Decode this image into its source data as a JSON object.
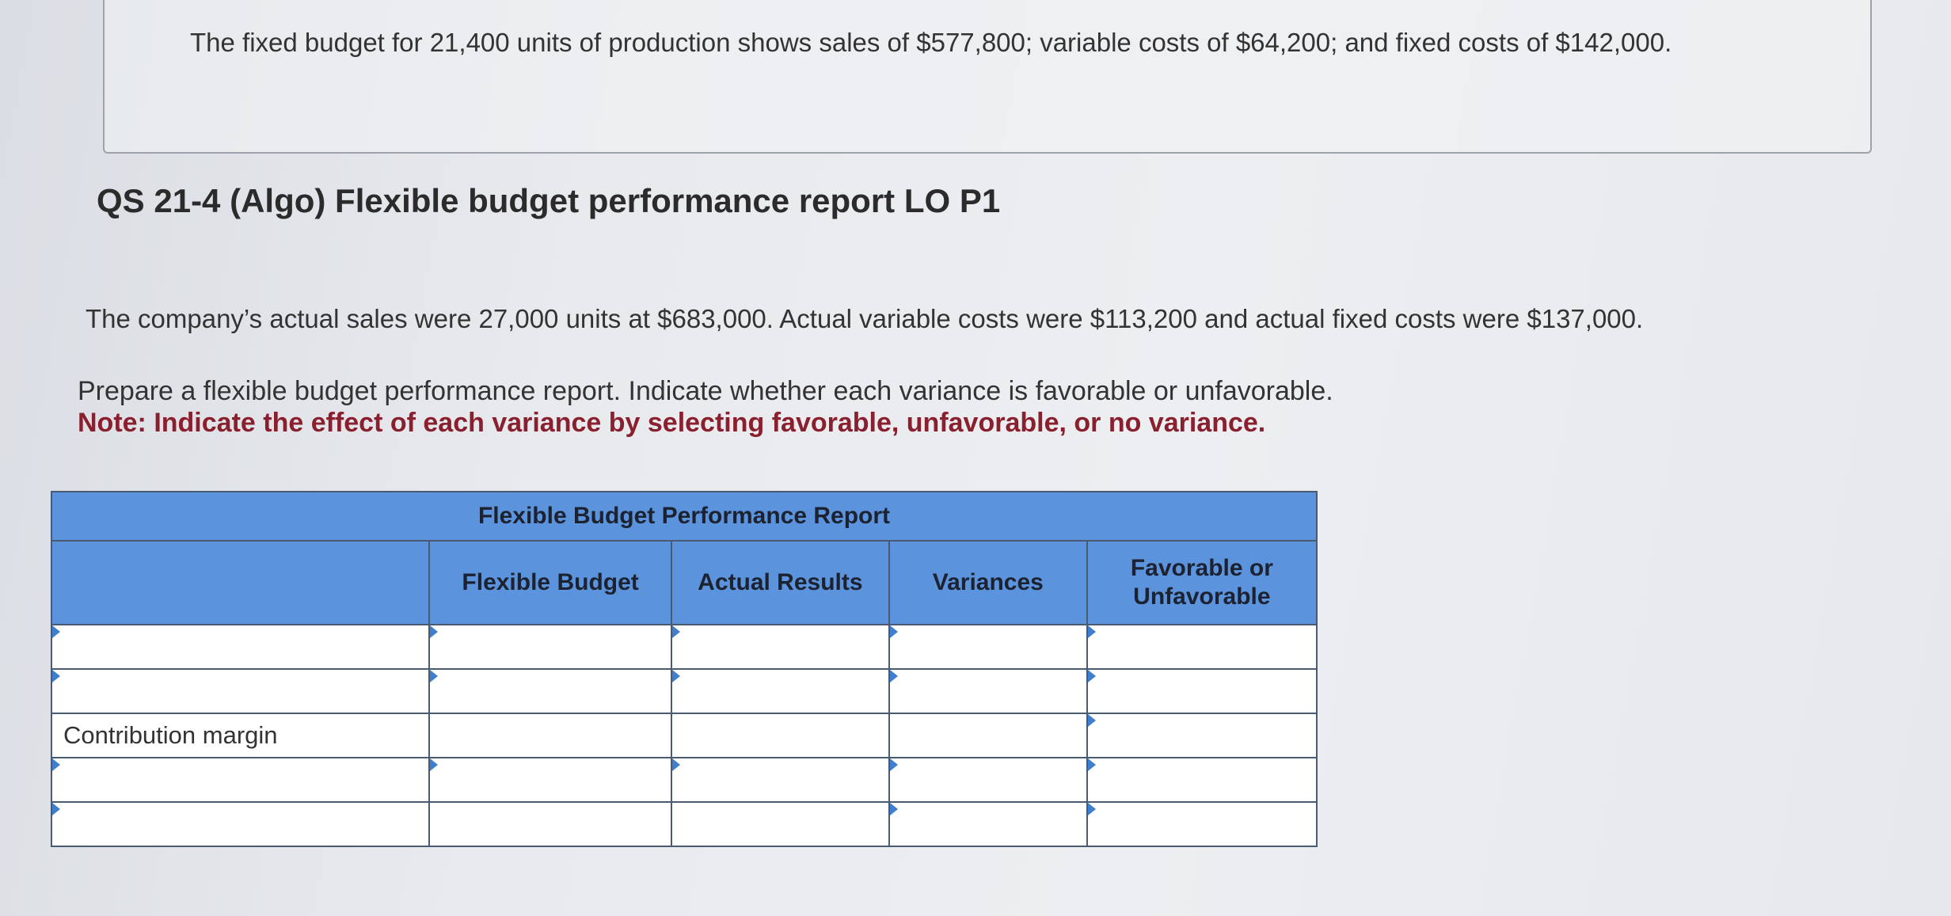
{
  "given": {
    "text": "The fixed budget for 21,400 units of production shows sales of $577,800; variable costs of $64,200; and fixed costs of $142,000."
  },
  "question": {
    "title": "QS 21-4 (Algo) Flexible budget performance report LO P1",
    "scenario": "The company’s actual sales were 27,000 units at $683,000. Actual variable costs were $113,200 and actual fixed costs were $137,000.",
    "instruction": "Prepare a flexible budget performance report. Indicate whether each variance is favorable or unfavorable.",
    "note": "Note: Indicate the effect of each variance by selecting favorable, unfavorable, or no variance."
  },
  "report": {
    "title": "Flexible Budget Performance Report",
    "columns": {
      "flexible_budget": "Flexible Budget",
      "actual_results": "Actual Results",
      "variances": "Variances",
      "fav_unfav": "Favorable or Unfavorable"
    },
    "rows": [
      {
        "label": "",
        "editable_label": true
      },
      {
        "label": "",
        "editable_label": true
      },
      {
        "label": "Contribution margin",
        "editable_label": false
      },
      {
        "label": "",
        "editable_label": true
      },
      {
        "label": "",
        "editable_label": true
      }
    ]
  }
}
